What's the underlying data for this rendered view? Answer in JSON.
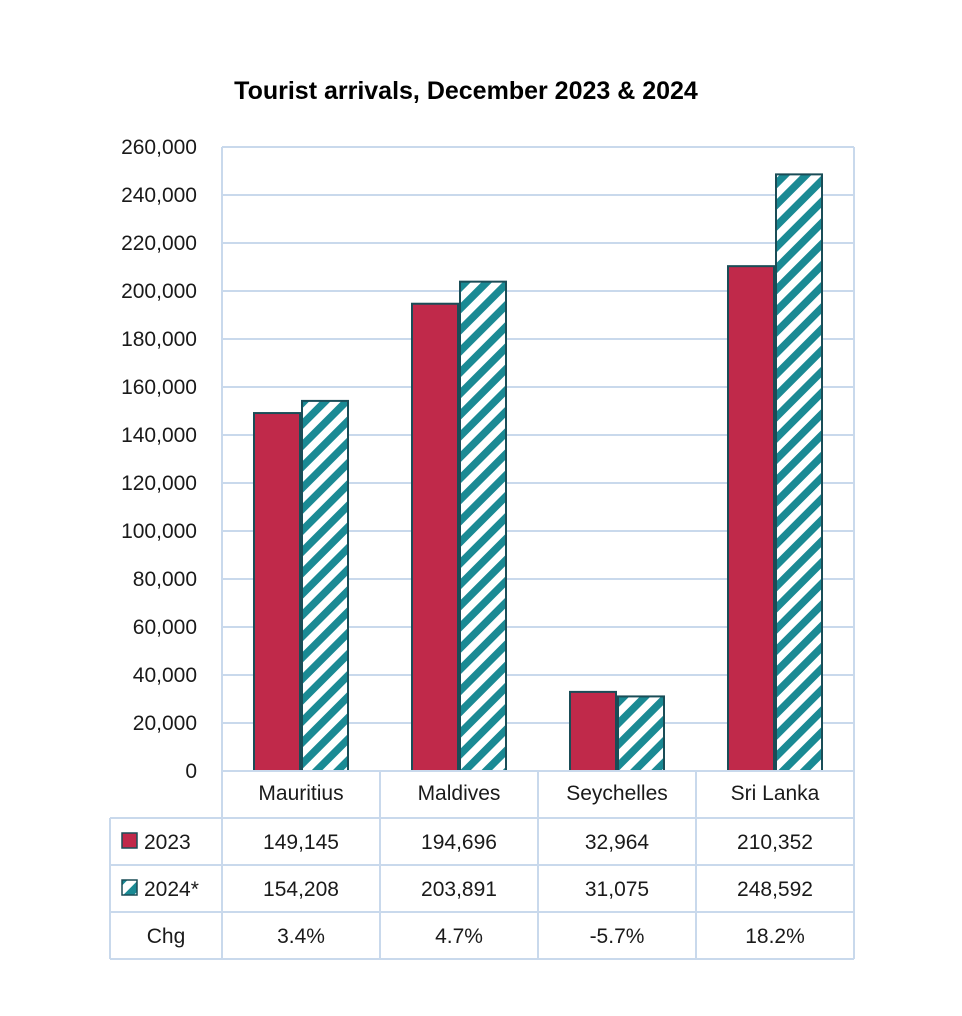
{
  "chart_data": {
    "type": "bar",
    "title": "Tourist arrivals, December 2023 & 2024",
    "categories": [
      "Mauritius",
      "Maldives",
      "Seychelles",
      "Sri Lanka"
    ],
    "series": [
      {
        "name": "2023",
        "values": [
          149145,
          194696,
          32964,
          210352
        ],
        "color": "#c0294a",
        "pattern": "solid"
      },
      {
        "name": "2024*",
        "values": [
          154208,
          203891,
          31075,
          248592
        ],
        "color": "#1a8a94",
        "pattern": "diagonal-stripes"
      }
    ],
    "ylim": [
      0,
      260000
    ],
    "yticks": [
      "0",
      "20,000",
      "40,000",
      "60,000",
      "80,000",
      "100,000",
      "120,000",
      "140,000",
      "160,000",
      "180,000",
      "200,000",
      "220,000",
      "240,000",
      "260,000"
    ],
    "grid": true,
    "data_table": {
      "rows": [
        {
          "label": "2023",
          "cells": [
            "149,145",
            "194,696",
            "32,964",
            "210,352"
          ]
        },
        {
          "label": "2024*",
          "cells": [
            "154,208",
            "203,891",
            "31,075",
            "248,592"
          ]
        },
        {
          "label": "Chg",
          "cells": [
            "3.4%",
            "4.7%",
            "-5.7%",
            "18.2%"
          ]
        }
      ]
    },
    "colors": {
      "grid": "#c9d9ec",
      "outline": "#1a4d57",
      "series_2023": "#c0294a",
      "series_2024": "#1a8a94"
    }
  }
}
